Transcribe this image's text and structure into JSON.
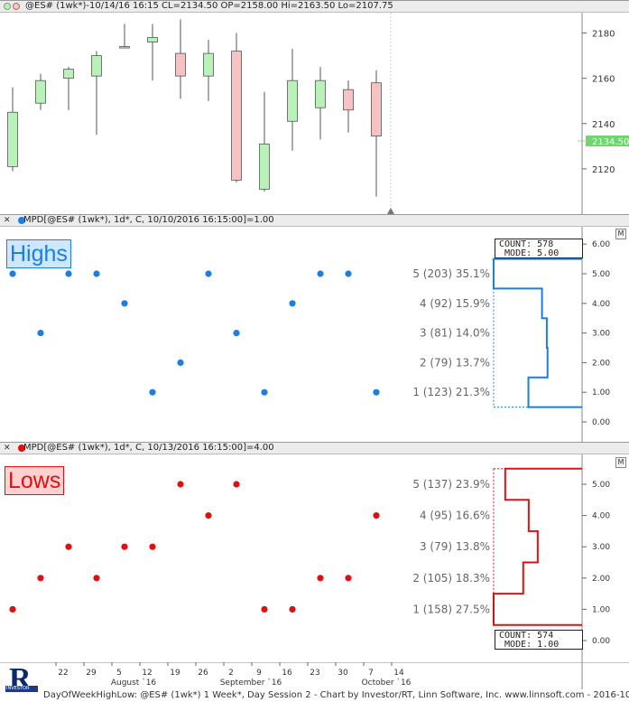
{
  "top_header": {
    "text": "@ES# (1wk*)-10/14/16 16:15 CL=2134.50 OP=2158.00 Hi=2163.50 Lo=2107.75"
  },
  "highs_header": {
    "text": "MPD[@ES# (1wk*), 1d*, C, 10/10/2016 16:15:00]=1.00"
  },
  "lows_header": {
    "text": "MPD[@ES# (1wk*), 1d*, C, 10/13/2016 16:15:00]=4.00"
  },
  "highs_badge": "Highs",
  "lows_badge": "Lows",
  "highs_stats": {
    "count_label": "COUNT:",
    "count": "578",
    "mode_label": "MODE:",
    "mode": "5.00"
  },
  "lows_stats": {
    "count_label": "COUNT:",
    "count": "574",
    "mode_label": "MODE:",
    "mode": "1.00"
  },
  "pane_button": "M",
  "last_price_label": "2134.50",
  "x_axis": {
    "day_labels": [
      "22",
      "29",
      "5",
      "12",
      "19",
      "26",
      "2",
      "9",
      "16",
      "23",
      "30",
      "7",
      "14"
    ],
    "month_labels": [
      "August `16",
      "September `16",
      "October `16"
    ]
  },
  "footer": "DayOfWeekHighLow: @ES# (1wk*) 1 Week*, Day Session 2 - Chart by Investor/RT, Linn Software, Inc. www.linnsoft.com - 2016-10-",
  "logo_letter": "R",
  "logo_text": "INVESTOR",
  "colors": {
    "up": "#b9f2b9",
    "down": "#f6c2c2",
    "highs": "#1a7fe0",
    "lows": "#e01010"
  },
  "chart_data": [
    {
      "type": "candlestick",
      "title": "@ES# (1wk*)",
      "y_ticks": [
        2120,
        2140,
        2160,
        2180
      ],
      "ylim": [
        2100,
        2189
      ],
      "candles": [
        {
          "o": 2121,
          "h": 2156,
          "l": 2119,
          "c": 2145
        },
        {
          "o": 2149,
          "h": 2162,
          "l": 2146,
          "c": 2159
        },
        {
          "o": 2160,
          "h": 2165,
          "l": 2146,
          "c": 2164
        },
        {
          "o": 2161,
          "h": 2172,
          "l": 2135,
          "c": 2170
        },
        {
          "o": 2174,
          "h": 2184,
          "l": 2174,
          "c": 2174
        },
        {
          "o": 2176,
          "h": 2184,
          "l": 2159,
          "c": 2178
        },
        {
          "o": 2171,
          "h": 2186,
          "l": 2151,
          "c": 2161
        },
        {
          "o": 2161,
          "h": 2177,
          "l": 2150,
          "c": 2171
        },
        {
          "o": 2172,
          "h": 2180,
          "l": 2114,
          "c": 2115
        },
        {
          "o": 2111,
          "h": 2154,
          "l": 2110,
          "c": 2131
        },
        {
          "o": 2141,
          "h": 2173,
          "l": 2128,
          "c": 2159
        },
        {
          "o": 2147,
          "h": 2165,
          "l": 2133,
          "c": 2159
        },
        {
          "o": 2155,
          "h": 2159,
          "l": 2136,
          "c": 2146
        },
        {
          "o": 2158,
          "h": 2163.5,
          "l": 2107.75,
          "c": 2134.5
        }
      ]
    },
    {
      "type": "scatter+histogram",
      "title": "Highs",
      "y_ticks": [
        0,
        1,
        2,
        3,
        4,
        5,
        6
      ],
      "day_of_week_per_bar": [
        5,
        3,
        5,
        5,
        4,
        1,
        2,
        5,
        3,
        1,
        4,
        5,
        5,
        1
      ],
      "distribution": [
        {
          "day": 5,
          "count": 203,
          "pct": 35.1
        },
        {
          "day": 4,
          "count": 92,
          "pct": 15.9
        },
        {
          "day": 3,
          "count": 81,
          "pct": 14.0
        },
        {
          "day": 2,
          "count": 79,
          "pct": 13.7
        },
        {
          "day": 1,
          "count": 123,
          "pct": 21.3
        }
      ],
      "distribution_labels": [
        "5 (203) 35.1%",
        "4 (92) 15.9%",
        "3 (81) 14.0%",
        "2 (79) 13.7%",
        "1 (123) 21.3%"
      ]
    },
    {
      "type": "scatter+histogram",
      "title": "Lows",
      "y_ticks": [
        0,
        1,
        2,
        3,
        4,
        5
      ],
      "day_of_week_per_bar": [
        1,
        2,
        3,
        2,
        3,
        3,
        5,
        4,
        5,
        1,
        1,
        2,
        2,
        4
      ],
      "distribution": [
        {
          "day": 5,
          "count": 137,
          "pct": 23.9
        },
        {
          "day": 4,
          "count": 95,
          "pct": 16.6
        },
        {
          "day": 3,
          "count": 79,
          "pct": 13.8
        },
        {
          "day": 2,
          "count": 105,
          "pct": 18.3
        },
        {
          "day": 1,
          "count": 158,
          "pct": 27.5
        }
      ],
      "distribution_labels": [
        "5 (137) 23.9%",
        "4 (95) 16.6%",
        "3 (79) 13.8%",
        "2 (105) 18.3%",
        "1 (158) 27.5%"
      ]
    }
  ]
}
